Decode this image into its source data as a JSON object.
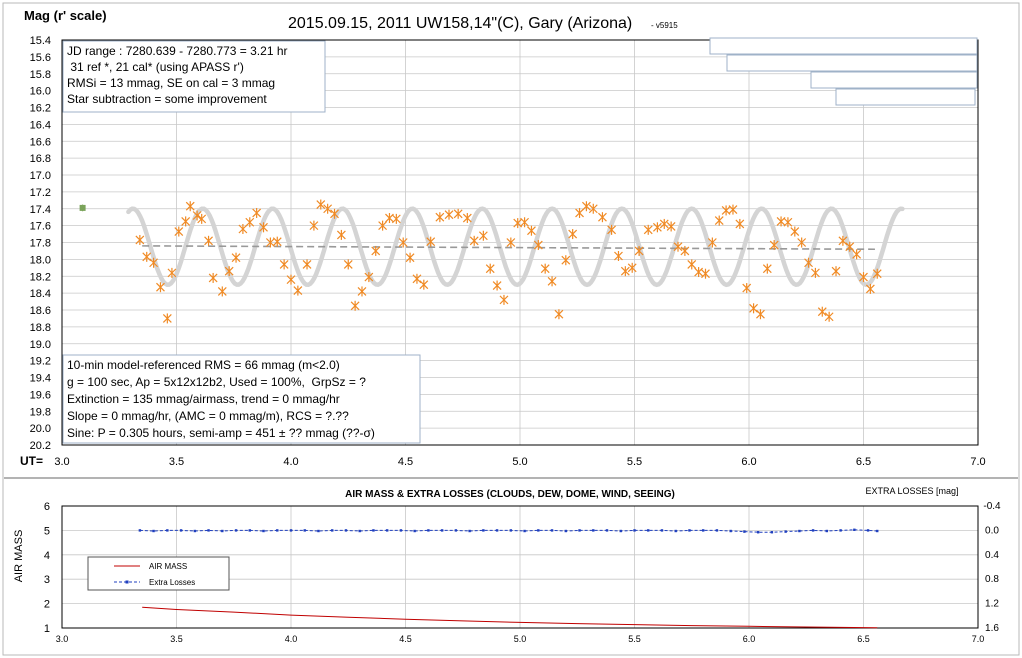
{
  "chart_data": [
    {
      "type": "scatter",
      "title": "2015.09.15, 2011 UW158,14\"(C), Gary (Arizona)",
      "title_suffix": "- v5915",
      "ylabel": "Mag (r' scale)",
      "xlabel": "UT=",
      "xlim": [
        3.0,
        7.0
      ],
      "xticks": [
        "3.0",
        "3.5",
        "4.0",
        "4.5",
        "5.0",
        "5.5",
        "6.0",
        "6.5",
        "7.0"
      ],
      "ylim": [
        20.2,
        15.4
      ],
      "y_inverted": true,
      "yticks": [
        "15.4",
        "15.6",
        "15.8",
        "16.0",
        "16.2",
        "16.4",
        "16.6",
        "16.8",
        "17.0",
        "17.2",
        "17.4",
        "17.6",
        "17.8",
        "18.0",
        "18.2",
        "18.4",
        "18.6",
        "18.8",
        "19.0",
        "19.2",
        "19.4",
        "19.6",
        "19.8",
        "20.0",
        "20.2"
      ],
      "grid": true,
      "colors": {
        "points": "#f08a24",
        "sine": "#d4d4d4",
        "trend": "#999999",
        "reference": "#7aa35a"
      },
      "info_box_top": [
        "JD range : 7280.639 - 7280.773 = 3.21 hr",
        " 31 ref *, 21 cal* (using APASS r')",
        "RMSi = 13 mmag, SE on cal = 3 mmag",
        "Star subtraction = some improvement"
      ],
      "info_box_bottom": [
        "10-min model-referenced RMS = 66 mmag (m<2.0)",
        "g = 100 sec, Ap = 5x12x12b2, Used = 100%,  GrpSz = ?",
        "Extinction = 135 mmag/airmass, trend = 0 mmag/hr",
        "Slope = 0 mmag/hr, (AMC = 0 mmag/m), RCS = ?.??",
        "Sine: P = 0.305 hours, semi-amp = 451 ± ?? mmag (??-σ)"
      ],
      "reference_point": {
        "x": 3.09,
        "y": 17.39,
        "err": 0.04
      },
      "sine_fit": {
        "period_hr": 0.305,
        "semi_amp_mag": 0.451,
        "mean_mag": 17.85,
        "phase_hr": 3.31,
        "x_start": 3.29,
        "x_end": 6.67
      },
      "trend_line": {
        "x": [
          3.35,
          6.55
        ],
        "y": [
          17.84,
          17.88
        ]
      },
      "points": {
        "x": [
          3.34,
          3.37,
          3.4,
          3.43,
          3.46,
          3.48,
          3.51,
          3.54,
          3.56,
          3.59,
          3.61,
          3.64,
          3.66,
          3.7,
          3.73,
          3.76,
          3.79,
          3.82,
          3.85,
          3.88,
          3.91,
          3.94,
          3.97,
          4.0,
          4.03,
          4.07,
          4.1,
          4.13,
          4.16,
          4.19,
          4.22,
          4.25,
          4.28,
          4.31,
          4.34,
          4.37,
          4.4,
          4.43,
          4.46,
          4.49,
          4.52,
          4.55,
          4.58,
          4.61,
          4.65,
          4.69,
          4.73,
          4.77,
          4.8,
          4.84,
          4.87,
          4.9,
          4.93,
          4.96,
          4.99,
          5.02,
          5.05,
          5.08,
          5.11,
          5.14,
          5.17,
          5.2,
          5.23,
          5.26,
          5.29,
          5.32,
          5.36,
          5.4,
          5.43,
          5.46,
          5.49,
          5.52,
          5.56,
          5.6,
          5.63,
          5.66,
          5.69,
          5.72,
          5.75,
          5.78,
          5.81,
          5.84,
          5.87,
          5.9,
          5.93,
          5.96,
          5.99,
          6.02,
          6.05,
          6.08,
          6.11,
          6.14,
          6.17,
          6.2,
          6.23,
          6.26,
          6.29,
          6.32,
          6.35,
          6.38,
          6.41,
          6.44,
          6.47,
          6.5,
          6.53,
          6.56
        ],
        "y": [
          17.77,
          17.97,
          18.04,
          18.33,
          18.7,
          18.16,
          17.67,
          17.55,
          17.37,
          17.48,
          17.52,
          17.78,
          18.22,
          18.38,
          18.14,
          17.98,
          17.64,
          17.56,
          17.45,
          17.62,
          17.8,
          17.79,
          18.06,
          18.24,
          18.37,
          18.06,
          17.6,
          17.35,
          17.4,
          17.46,
          17.71,
          18.06,
          18.55,
          18.38,
          18.21,
          17.9,
          17.6,
          17.51,
          17.52,
          17.8,
          17.98,
          18.23,
          18.3,
          17.79,
          17.5,
          17.47,
          17.46,
          17.51,
          17.78,
          17.72,
          18.11,
          18.31,
          18.48,
          17.8,
          17.57,
          17.56,
          17.66,
          17.83,
          18.11,
          18.26,
          18.65,
          18.01,
          17.7,
          17.45,
          17.37,
          17.4,
          17.5,
          17.65,
          17.96,
          18.14,
          18.1,
          17.9,
          17.65,
          17.62,
          17.58,
          17.61,
          17.85,
          17.9,
          18.06,
          18.15,
          18.17,
          17.8,
          17.54,
          17.42,
          17.41,
          17.58,
          18.34,
          18.58,
          18.65,
          18.11,
          17.83,
          17.55,
          17.56,
          17.67,
          17.8,
          18.04,
          18.16,
          18.62,
          18.68,
          18.14,
          17.78,
          17.85,
          17.94,
          18.21,
          18.35,
          18.17
        ]
      }
    },
    {
      "type": "line",
      "title": "AIR MASS & EXTRA LOSSES (CLOUDS, DEW, DOME, WIND, SEEING)",
      "ylabel": "AIR MASS",
      "y2label": "EXTRA LOSSES [mag]",
      "xlim": [
        3.0,
        7.0
      ],
      "xticks": [
        "3.0",
        "3.5",
        "4.0",
        "4.5",
        "5.0",
        "5.5",
        "6.0",
        "6.5",
        "7.0"
      ],
      "ylim": [
        1,
        6
      ],
      "yticks": [
        "1",
        "2",
        "3",
        "4",
        "5",
        "6"
      ],
      "y2lim": [
        1.6,
        -0.4
      ],
      "y2ticks": [
        "-0.4",
        "0.0",
        "0.4",
        "0.8",
        "1.2",
        "1.6"
      ],
      "grid": true,
      "colors": {
        "air_mass": "#c00000",
        "extra_losses": "#1f3fbf"
      },
      "legend_position": "bottom-left",
      "series": [
        {
          "name": "AIR MASS",
          "axis": "left",
          "x": [
            3.35,
            3.5,
            3.75,
            4.0,
            4.25,
            4.5,
            4.75,
            5.0,
            5.25,
            5.5,
            5.75,
            6.0,
            6.25,
            6.56
          ],
          "y": [
            1.85,
            1.76,
            1.65,
            1.53,
            1.44,
            1.36,
            1.29,
            1.23,
            1.18,
            1.14,
            1.1,
            1.07,
            1.04,
            1.01
          ]
        },
        {
          "name": "Extra Losses",
          "axis": "right",
          "x": [
            3.34,
            3.4,
            3.46,
            3.52,
            3.58,
            3.64,
            3.7,
            3.76,
            3.82,
            3.88,
            3.94,
            4.0,
            4.06,
            4.12,
            4.18,
            4.24,
            4.3,
            4.36,
            4.42,
            4.48,
            4.54,
            4.6,
            4.66,
            4.72,
            4.78,
            4.84,
            4.9,
            4.96,
            5.02,
            5.08,
            5.14,
            5.2,
            5.26,
            5.32,
            5.38,
            5.44,
            5.5,
            5.56,
            5.62,
            5.68,
            5.74,
            5.8,
            5.86,
            5.92,
            5.98,
            6.04,
            6.1,
            6.16,
            6.22,
            6.28,
            6.34,
            6.4,
            6.46,
            6.52,
            6.56
          ],
          "y": [
            0.0,
            0.01,
            0.0,
            0.0,
            0.01,
            0.0,
            0.01,
            0.0,
            0.0,
            0.01,
            0.0,
            0.0,
            0.0,
            0.01,
            0.0,
            0.0,
            0.01,
            0.0,
            0.0,
            0.0,
            0.01,
            0.0,
            0.0,
            0.0,
            0.01,
            0.0,
            0.0,
            0.0,
            0.01,
            0.0,
            0.0,
            0.01,
            0.0,
            0.0,
            0.0,
            0.01,
            0.0,
            0.0,
            0.0,
            0.01,
            0.0,
            0.0,
            0.0,
            0.01,
            0.02,
            0.03,
            0.03,
            0.02,
            0.01,
            0.0,
            0.01,
            0.0,
            -0.01,
            0.0,
            0.01
          ]
        }
      ]
    }
  ]
}
